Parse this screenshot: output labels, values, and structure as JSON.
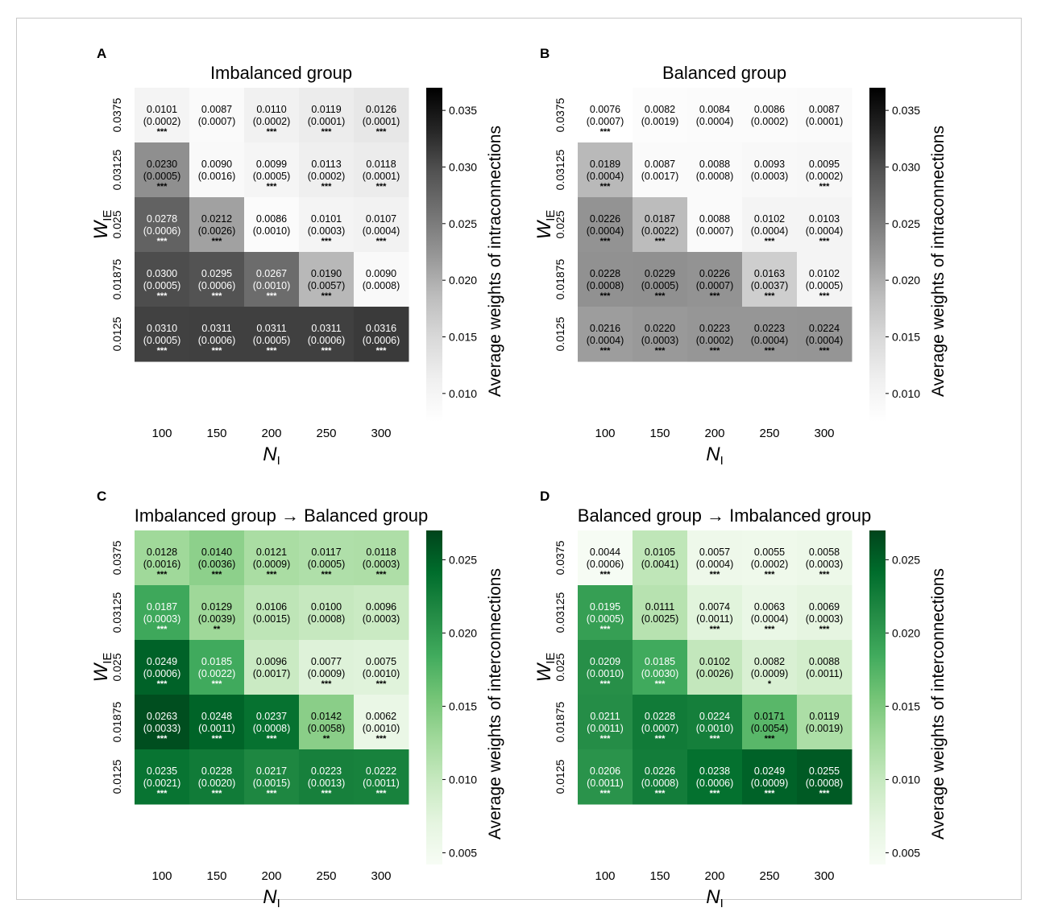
{
  "colors": {
    "gray_scale": [
      "#ffffff",
      "#000000"
    ],
    "green_scale": [
      "#f7fcf5",
      "#00441b"
    ],
    "text_dark": "#000000",
    "text_light": "#ffffff"
  },
  "chart_data": [
    {
      "type": "heatmap",
      "panel_letter": "A",
      "title": "Imbalanced group",
      "xlabel": "N",
      "xlabel_sub": "I",
      "ylabel": "W",
      "ylabel_sub": "IE",
      "x": [
        "100",
        "150",
        "200",
        "250",
        "300"
      ],
      "y": [
        "0.0375",
        "0.03125",
        "0.025",
        "0.01875",
        "0.0125"
      ],
      "colormap": "Greys",
      "vmin": 0.0075,
      "vmax": 0.037,
      "colorbar_label": "Average weights of intraconnections",
      "colorbar_ticks": [
        "0.010",
        "0.015",
        "0.020",
        "0.025",
        "0.030",
        "0.035"
      ],
      "values": [
        [
          0.0101,
          0.0087,
          0.011,
          0.0119,
          0.0126
        ],
        [
          0.023,
          0.009,
          0.0099,
          0.0113,
          0.0118
        ],
        [
          0.0278,
          0.0212,
          0.0086,
          0.0101,
          0.0107
        ],
        [
          0.03,
          0.0295,
          0.0267,
          0.019,
          0.009
        ],
        [
          0.031,
          0.0311,
          0.0311,
          0.0311,
          0.0316
        ]
      ],
      "value_text": [
        [
          "0.0101",
          "0.0087",
          "0.0110",
          "0.0119",
          "0.0126"
        ],
        [
          "0.0230",
          "0.0090",
          "0.0099",
          "0.0113",
          "0.0118"
        ],
        [
          "0.0278",
          "0.0212",
          "0.0086",
          "0.0101",
          "0.0107"
        ],
        [
          "0.0300",
          "0.0295",
          "0.0267",
          "0.0190",
          "0.0090"
        ],
        [
          "0.0310",
          "0.0311",
          "0.0311",
          "0.0311",
          "0.0316"
        ]
      ],
      "sd_text": [
        [
          "(0.0002)",
          "(0.0007)",
          "(0.0002)",
          "(0.0001)",
          "(0.0001)"
        ],
        [
          "(0.0005)",
          "(0.0016)",
          "(0.0005)",
          "(0.0002)",
          "(0.0001)"
        ],
        [
          "(0.0006)",
          "(0.0026)",
          "(0.0010)",
          "(0.0003)",
          "(0.0004)"
        ],
        [
          "(0.0005)",
          "(0.0006)",
          "(0.0010)",
          "(0.0057)",
          "(0.0008)"
        ],
        [
          "(0.0005)",
          "(0.0006)",
          "(0.0005)",
          "(0.0006)",
          "(0.0006)"
        ]
      ],
      "significance": [
        [
          "***",
          "",
          "***",
          "***",
          "***"
        ],
        [
          "***",
          "",
          "***",
          "***",
          "***"
        ],
        [
          "***",
          "***",
          "",
          "***",
          "***"
        ],
        [
          "***",
          "***",
          "***",
          "***",
          ""
        ],
        [
          "***",
          "***",
          "***",
          "***",
          "***"
        ]
      ]
    },
    {
      "type": "heatmap",
      "panel_letter": "B",
      "title": "Balanced group",
      "xlabel": "N",
      "xlabel_sub": "I",
      "ylabel": "W",
      "ylabel_sub": "IE",
      "x": [
        "100",
        "150",
        "200",
        "250",
        "300"
      ],
      "y": [
        "0.0375",
        "0.03125",
        "0.025",
        "0.01875",
        "0.0125"
      ],
      "colormap": "Greys",
      "vmin": 0.0075,
      "vmax": 0.037,
      "colorbar_label": "Average weights of intraconnections",
      "colorbar_ticks": [
        "0.010",
        "0.015",
        "0.020",
        "0.025",
        "0.030",
        "0.035"
      ],
      "values": [
        [
          0.0076,
          0.0082,
          0.0084,
          0.0086,
          0.0087
        ],
        [
          0.0189,
          0.0087,
          0.0088,
          0.0093,
          0.0095
        ],
        [
          0.0226,
          0.0187,
          0.0088,
          0.0102,
          0.0103
        ],
        [
          0.0228,
          0.0229,
          0.0226,
          0.0163,
          0.0102
        ],
        [
          0.0216,
          0.022,
          0.0223,
          0.0223,
          0.0224
        ]
      ],
      "value_text": [
        [
          "0.0076",
          "0.0082",
          "0.0084",
          "0.0086",
          "0.0087"
        ],
        [
          "0.0189",
          "0.0087",
          "0.0088",
          "0.0093",
          "0.0095"
        ],
        [
          "0.0226",
          "0.0187",
          "0.0088",
          "0.0102",
          "0.0103"
        ],
        [
          "0.0228",
          "0.0229",
          "0.0226",
          "0.0163",
          "0.0102"
        ],
        [
          "0.0216",
          "0.0220",
          "0.0223",
          "0.0223",
          "0.0224"
        ]
      ],
      "sd_text": [
        [
          "(0.0007)",
          "(0.0019)",
          "(0.0004)",
          "(0.0002)",
          "(0.0001)"
        ],
        [
          "(0.0004)",
          "(0.0017)",
          "(0.0008)",
          "(0.0003)",
          "(0.0002)"
        ],
        [
          "(0.0004)",
          "(0.0022)",
          "(0.0007)",
          "(0.0004)",
          "(0.0004)"
        ],
        [
          "(0.0008)",
          "(0.0005)",
          "(0.0007)",
          "(0.0037)",
          "(0.0005)"
        ],
        [
          "(0.0004)",
          "(0.0003)",
          "(0.0002)",
          "(0.0004)",
          "(0.0004)"
        ]
      ],
      "significance": [
        [
          "***",
          "",
          "",
          "",
          ""
        ],
        [
          "***",
          "",
          "",
          "",
          "***"
        ],
        [
          "***",
          "***",
          "",
          "***",
          "***"
        ],
        [
          "***",
          "***",
          "***",
          "***",
          "***"
        ],
        [
          "***",
          "***",
          "***",
          "***",
          "***"
        ]
      ]
    },
    {
      "type": "heatmap",
      "panel_letter": "C",
      "title": "Imbalanced group → Balanced group",
      "xlabel": "N",
      "xlabel_sub": "I",
      "ylabel": "W",
      "ylabel_sub": "IE",
      "x": [
        "100",
        "150",
        "200",
        "250",
        "300"
      ],
      "y": [
        "0.0375",
        "0.03125",
        "0.025",
        "0.01875",
        "0.0125"
      ],
      "colormap": "Greens",
      "vmin": 0.0042,
      "vmax": 0.027,
      "colorbar_label": "Average weights of interconnections",
      "colorbar_ticks": [
        "0.005",
        "0.010",
        "0.015",
        "0.020",
        "0.025"
      ],
      "values": [
        [
          0.0128,
          0.014,
          0.0121,
          0.0117,
          0.0118
        ],
        [
          0.0187,
          0.0129,
          0.0106,
          0.01,
          0.0096
        ],
        [
          0.0249,
          0.0185,
          0.0096,
          0.0077,
          0.0075
        ],
        [
          0.0263,
          0.0248,
          0.0237,
          0.0142,
          0.0062
        ],
        [
          0.0235,
          0.0228,
          0.0217,
          0.0223,
          0.0222
        ]
      ],
      "value_text": [
        [
          "0.0128",
          "0.0140",
          "0.0121",
          "0.0117",
          "0.0118"
        ],
        [
          "0.0187",
          "0.0129",
          "0.0106",
          "0.0100",
          "0.0096"
        ],
        [
          "0.0249",
          "0.0185",
          "0.0096",
          "0.0077",
          "0.0075"
        ],
        [
          "0.0263",
          "0.0248",
          "0.0237",
          "0.0142",
          "0.0062"
        ],
        [
          "0.0235",
          "0.0228",
          "0.0217",
          "0.0223",
          "0.0222"
        ]
      ],
      "sd_text": [
        [
          "(0.0016)",
          "(0.0036)",
          "(0.0009)",
          "(0.0005)",
          "(0.0003)"
        ],
        [
          "(0.0003)",
          "(0.0039)",
          "(0.0015)",
          "(0.0008)",
          "(0.0003)"
        ],
        [
          "(0.0006)",
          "(0.0022)",
          "(0.0017)",
          "(0.0009)",
          "(0.0010)"
        ],
        [
          "(0.0033)",
          "(0.0011)",
          "(0.0008)",
          "(0.0058)",
          "(0.0010)"
        ],
        [
          "(0.0021)",
          "(0.0020)",
          "(0.0015)",
          "(0.0013)",
          "(0.0011)"
        ]
      ],
      "significance": [
        [
          "***",
          "***",
          "***",
          "***",
          "***"
        ],
        [
          "***",
          "**",
          "",
          "",
          ""
        ],
        [
          "***",
          "***",
          "",
          "***",
          "***"
        ],
        [
          "***",
          "***",
          "***",
          "**",
          "***"
        ],
        [
          "***",
          "***",
          "***",
          "***",
          "***"
        ]
      ]
    },
    {
      "type": "heatmap",
      "panel_letter": "D",
      "title": "Balanced group → Imbalanced group",
      "xlabel": "N",
      "xlabel_sub": "I",
      "ylabel": "W",
      "ylabel_sub": "IE",
      "x": [
        "100",
        "150",
        "200",
        "250",
        "300"
      ],
      "y": [
        "0.0375",
        "0.03125",
        "0.025",
        "0.01875",
        "0.0125"
      ],
      "colormap": "Greens",
      "vmin": 0.0042,
      "vmax": 0.027,
      "colorbar_label": "Average weights of interconnections",
      "colorbar_ticks": [
        "0.005",
        "0.010",
        "0.015",
        "0.020",
        "0.025"
      ],
      "values": [
        [
          0.0044,
          0.0105,
          0.0057,
          0.0055,
          0.0058
        ],
        [
          0.0195,
          0.0111,
          0.0074,
          0.0063,
          0.0069
        ],
        [
          0.0209,
          0.0185,
          0.0102,
          0.0082,
          0.0088
        ],
        [
          0.0211,
          0.0228,
          0.0224,
          0.0171,
          0.0119
        ],
        [
          0.0206,
          0.0226,
          0.0238,
          0.0249,
          0.0255
        ]
      ],
      "value_text": [
        [
          "0.0044",
          "0.0105",
          "0.0057",
          "0.0055",
          "0.0058"
        ],
        [
          "0.0195",
          "0.0111",
          "0.0074",
          "0.0063",
          "0.0069"
        ],
        [
          "0.0209",
          "0.0185",
          "0.0102",
          "0.0082",
          "0.0088"
        ],
        [
          "0.0211",
          "0.0228",
          "0.0224",
          "0.0171",
          "0.0119"
        ],
        [
          "0.0206",
          "0.0226",
          "0.0238",
          "0.0249",
          "0.0255"
        ]
      ],
      "sd_text": [
        [
          "(0.0006)",
          "(0.0041)",
          "(0.0004)",
          "(0.0002)",
          "(0.0003)"
        ],
        [
          "(0.0005)",
          "(0.0025)",
          "(0.0011)",
          "(0.0004)",
          "(0.0003)"
        ],
        [
          "(0.0010)",
          "(0.0030)",
          "(0.0026)",
          "(0.0009)",
          "(0.0011)"
        ],
        [
          "(0.0011)",
          "(0.0007)",
          "(0.0010)",
          "(0.0054)",
          "(0.0019)"
        ],
        [
          "(0.0011)",
          "(0.0008)",
          "(0.0006)",
          "(0.0009)",
          "(0.0008)"
        ]
      ],
      "significance": [
        [
          "***",
          "",
          "***",
          "***",
          "***"
        ],
        [
          "***",
          "",
          "***",
          "***",
          "***"
        ],
        [
          "***",
          "***",
          "",
          "*",
          ""
        ],
        [
          "***",
          "***",
          "***",
          "***",
          ""
        ],
        [
          "***",
          "***",
          "***",
          "***",
          "***"
        ]
      ]
    }
  ]
}
